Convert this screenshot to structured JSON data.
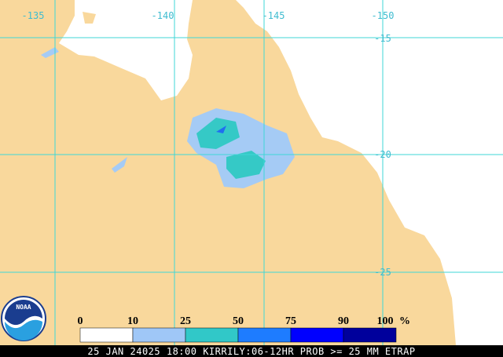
{
  "map": {
    "lon_labels": [
      "-135",
      "-140",
      "-145",
      "-150"
    ],
    "lat_labels": [
      "-15",
      "-20",
      "-25"
    ],
    "legend": {
      "ticks": [
        0,
        10,
        25,
        50,
        75,
        90,
        100
      ],
      "unit": "%"
    },
    "logo": "NOAA",
    "footer": "25 JAN 24025 18:00 KIRRILY:06-12HR PROB >= 25 MM ETRAP"
  }
}
